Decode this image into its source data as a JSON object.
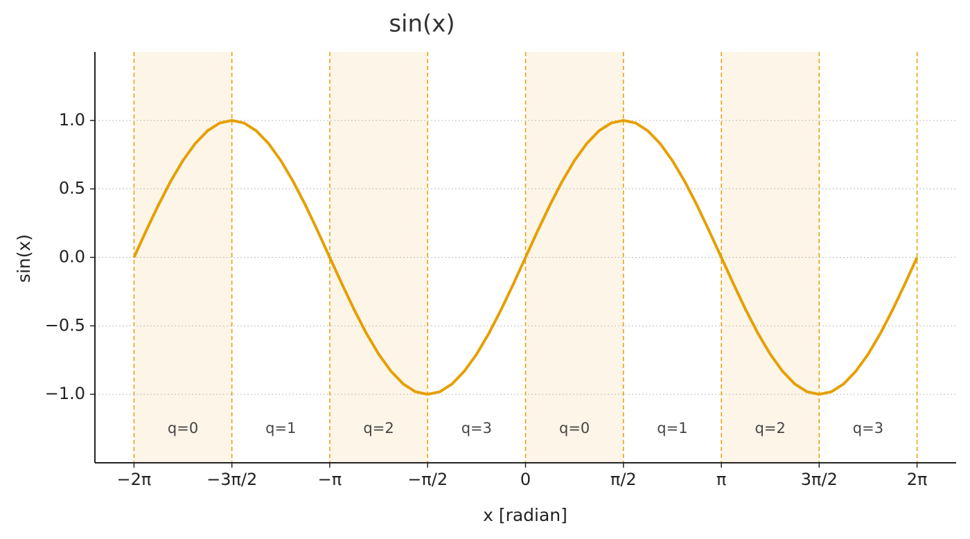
{
  "chart_data": {
    "type": "line",
    "title": "sin(x)",
    "x_label": "x [radian]",
    "y_label": "sin(x)",
    "x": [
      -6.283,
      -6.087,
      -5.89,
      -5.694,
      -5.498,
      -5.301,
      -5.105,
      -4.909,
      -4.712,
      -4.516,
      -4.32,
      -4.123,
      -3.927,
      -3.731,
      -3.534,
      -3.338,
      -3.142,
      -2.945,
      -2.749,
      -2.553,
      -2.356,
      -2.16,
      -1.963,
      -1.767,
      -1.571,
      -1.374,
      -1.178,
      -0.982,
      -0.785,
      -0.589,
      -0.393,
      -0.196,
      0,
      0.196,
      0.393,
      0.589,
      0.785,
      0.982,
      1.178,
      1.374,
      1.571,
      1.767,
      1.963,
      2.16,
      2.356,
      2.553,
      2.749,
      2.945,
      3.142,
      3.338,
      3.534,
      3.731,
      3.927,
      4.123,
      4.32,
      4.516,
      4.712,
      4.909,
      5.105,
      5.301,
      5.498,
      5.694,
      5.89,
      6.087,
      6.283
    ],
    "series": [
      {
        "color": "#e69f00",
        "values": [
          0,
          0.195,
          0.383,
          0.556,
          0.707,
          0.831,
          0.924,
          0.981,
          1,
          0.981,
          0.924,
          0.831,
          0.707,
          0.556,
          0.383,
          0.195,
          0,
          -0.195,
          -0.383,
          -0.556,
          -0.707,
          -0.831,
          -0.924,
          -0.981,
          -1,
          -0.981,
          -0.924,
          -0.831,
          -0.707,
          -0.556,
          -0.383,
          -0.195,
          0,
          0.195,
          0.383,
          0.556,
          0.707,
          0.831,
          0.924,
          0.981,
          1,
          0.981,
          0.924,
          0.831,
          0.707,
          0.556,
          0.383,
          0.195,
          0,
          -0.195,
          -0.383,
          -0.556,
          -0.707,
          -0.831,
          -0.924,
          -0.981,
          -1,
          -0.981,
          -0.924,
          -0.831,
          -0.707,
          -0.556,
          -0.383,
          -0.195,
          0
        ]
      }
    ],
    "xlim": [
      -6.91,
      6.91
    ],
    "ylim": [
      -1.5,
      1.5
    ],
    "xticks": [
      {
        "value": -6.283,
        "label": "−2π"
      },
      {
        "value": -4.712,
        "label": "−3π/2"
      },
      {
        "value": -3.142,
        "label": "−π"
      },
      {
        "value": -1.571,
        "label": "−π/2"
      },
      0,
      {
        "value": 1.571,
        "label": "π/2"
      },
      {
        "value": 3.142,
        "label": "π"
      },
      {
        "value": 4.712,
        "label": "3π/2"
      },
      {
        "value": 6.283,
        "label": "2π"
      }
    ],
    "yticks": [
      {
        "value": -1,
        "label": "−1.0"
      },
      {
        "value": -0.5,
        "label": "−0.5"
      },
      {
        "value": 0,
        "label": "0.0"
      },
      0.5,
      {
        "value": 1,
        "label": "1.0"
      }
    ],
    "grid": true,
    "regions": [
      {
        "label": "q=0",
        "from": -6.283,
        "to": -4.712,
        "shaded": true
      },
      {
        "label": "q=1",
        "from": -4.712,
        "to": -3.142,
        "shaded": false
      },
      {
        "label": "q=2",
        "from": -3.142,
        "to": -1.571,
        "shaded": true
      },
      {
        "label": "q=3",
        "from": -1.571,
        "to": 0,
        "shaded": false
      },
      {
        "label": "q=0",
        "from": 0,
        "to": 1.571,
        "shaded": true
      },
      {
        "label": "q=1",
        "from": 1.571,
        "to": 3.142,
        "shaded": false
      },
      {
        "label": "q=2",
        "from": 3.142,
        "to": 4.712,
        "shaded": true
      },
      {
        "label": "q=3",
        "from": 4.712,
        "to": 6.283,
        "shaded": false
      }
    ],
    "region_color": "#fdf5e8"
  }
}
